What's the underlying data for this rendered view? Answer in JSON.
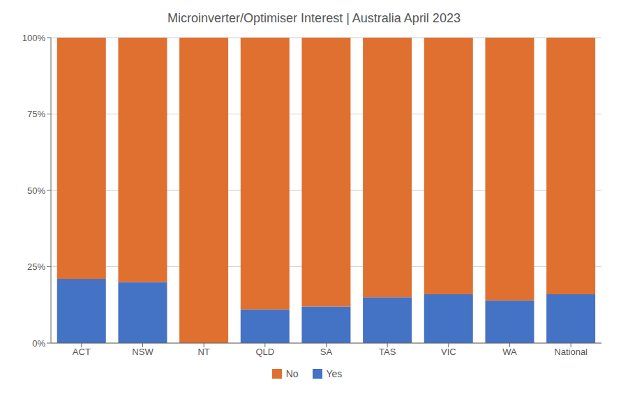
{
  "chart_data": {
    "type": "bar",
    "stacked": true,
    "title": "Microinverter/Optimiser Interest | Australia April 2023",
    "categories": [
      "ACT",
      "NSW",
      "NT",
      "QLD",
      "SA",
      "TAS",
      "VIC",
      "WA",
      "National"
    ],
    "series": [
      {
        "name": "Yes",
        "color": "#4472C4",
        "values": [
          21,
          20,
          0,
          11,
          12,
          15,
          16,
          14,
          16
        ]
      },
      {
        "name": "No",
        "color": "#E07030",
        "values": [
          79,
          80,
          100,
          89,
          88,
          85,
          84,
          86,
          84
        ]
      }
    ],
    "ylim": [
      0,
      100
    ],
    "yticks": [
      {
        "value": 0,
        "label": "0%"
      },
      {
        "value": 25,
        "label": "25%"
      },
      {
        "value": 50,
        "label": "50%"
      },
      {
        "value": 75,
        "label": "75%"
      },
      {
        "value": 100,
        "label": "100%"
      }
    ],
    "grid": true,
    "legend": "bottom"
  }
}
